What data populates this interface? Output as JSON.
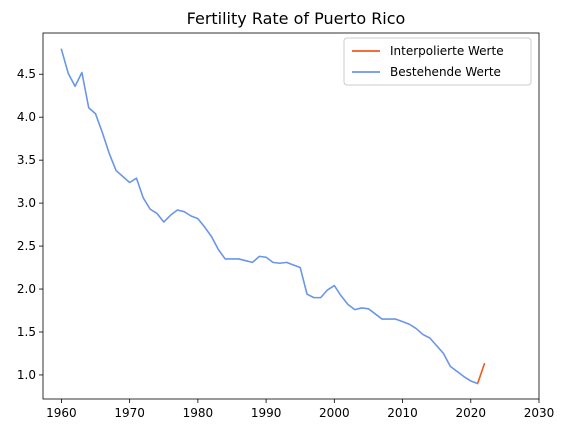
{
  "chart_data": {
    "type": "line",
    "title": "Fertility Rate of Puerto Rico",
    "xlabel": "",
    "ylabel": "",
    "xlim": [
      1957.3,
      2030
    ],
    "ylim": [
      0.72,
      4.98
    ],
    "x_ticks": [
      1960,
      1970,
      1980,
      1990,
      2000,
      2010,
      2020,
      2030
    ],
    "y_ticks": [
      1.0,
      1.5,
      2.0,
      2.5,
      3.0,
      3.5,
      4.0,
      4.5
    ],
    "x_tick_labels": [
      "1960",
      "1970",
      "1980",
      "1990",
      "2000",
      "2010",
      "2020",
      "2030"
    ],
    "y_tick_labels": [
      "1.0",
      "1.5",
      "2.0",
      "2.5",
      "3.0",
      "3.5",
      "4.0",
      "4.5"
    ],
    "grid": false,
    "legend_position": "top-right",
    "series": [
      {
        "name": "Interpolierte Werte",
        "color": "#f05a1e",
        "x": [
          2021,
          2022
        ],
        "y": [
          0.9,
          1.13
        ]
      },
      {
        "name": "Bestehende Werte",
        "color": "#6b96e6",
        "x": [
          1960,
          1961,
          1962,
          1963,
          1964,
          1965,
          1966,
          1967,
          1968,
          1969,
          1970,
          1971,
          1972,
          1973,
          1974,
          1975,
          1976,
          1977,
          1978,
          1979,
          1980,
          1981,
          1982,
          1983,
          1984,
          1985,
          1986,
          1987,
          1988,
          1989,
          1990,
          1991,
          1992,
          1993,
          1994,
          1995,
          1996,
          1997,
          1998,
          1999,
          2000,
          2001,
          2002,
          2003,
          2004,
          2005,
          2006,
          2007,
          2008,
          2009,
          2010,
          2011,
          2012,
          2013,
          2014,
          2015,
          2016,
          2017,
          2018,
          2019,
          2020,
          2021
        ],
        "y": [
          4.79,
          4.51,
          4.36,
          4.52,
          4.11,
          4.04,
          3.82,
          3.58,
          3.38,
          3.31,
          3.24,
          3.29,
          3.06,
          2.93,
          2.88,
          2.78,
          2.86,
          2.92,
          2.9,
          2.85,
          2.82,
          2.72,
          2.61,
          2.46,
          2.35,
          2.35,
          2.35,
          2.33,
          2.31,
          2.38,
          2.37,
          2.31,
          2.3,
          2.31,
          2.28,
          2.25,
          1.94,
          1.9,
          1.9,
          1.99,
          2.04,
          1.92,
          1.82,
          1.76,
          1.78,
          1.77,
          1.71,
          1.65,
          1.65,
          1.65,
          1.62,
          1.59,
          1.54,
          1.47,
          1.43,
          1.34,
          1.25,
          1.1,
          1.04,
          0.98,
          0.93,
          0.9
        ]
      }
    ]
  }
}
